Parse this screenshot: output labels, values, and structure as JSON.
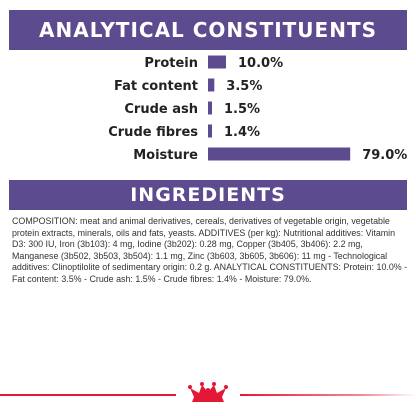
{
  "header": {
    "analytical_title": "ANALYTICAL CONSTITUENTS"
  },
  "chart_data": {
    "type": "bar",
    "orientation": "horizontal",
    "categories": [
      "Protein",
      "Fat content",
      "Crude ash",
      "Crude fibres",
      "Moisture"
    ],
    "values": [
      10.0,
      3.5,
      1.5,
      1.4,
      79.0
    ],
    "value_labels": [
      "10.0%",
      "3.5%",
      "1.5%",
      "1.4%",
      "79.0%"
    ],
    "unit": "%",
    "xlim": [
      0,
      100
    ],
    "grid": false,
    "legend": "none",
    "title": "",
    "xlabel": "",
    "ylabel": ""
  },
  "ingredients": {
    "title": "INGREDIENTS",
    "composition": "COMPOSITION: meat and animal derivatives, cereals, derivatives of vegetable origin, vegetable protein extracts, minerals, oils and fats, yeasts. ADDITIVES (per kg): Nutritional additives: Vitamin D3: 300 IU, Iron (3b103): 4 mg, Iodine (3b202): 0.28 mg, Copper (3b405, 3b406): 2.2 mg, Manganese (3b502, 3b503, 3b504): 1.1 mg, Zinc (3b603, 3b605, 3b606): 11 mg - Technological additives: Clinoptilolite of sedimentary origin: 0.2 g. ANALYTICAL CONSTITUENTS: Protein: 10.0% - Fat content: 3.5% - Crude ash: 1.5% - Crude fibres: 1.4% - Moisture: 79.0%."
  },
  "colors": {
    "banner": "#5c4b8f",
    "bar": "#5c4b8f",
    "brand_red": "#e31837"
  },
  "footer": {
    "logo_icon": "royal-crown-logo-icon"
  }
}
